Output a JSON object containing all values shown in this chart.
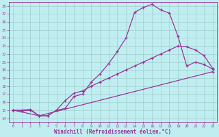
{
  "xlabel": "Windchill (Refroidissement éolien,°C)",
  "xlim": [
    -0.5,
    23.5
  ],
  "ylim": [
    13.5,
    28.5
  ],
  "xticks": [
    0,
    1,
    2,
    3,
    4,
    5,
    6,
    7,
    8,
    9,
    10,
    11,
    12,
    13,
    14,
    15,
    16,
    17,
    18,
    19,
    20,
    21,
    22,
    23
  ],
  "yticks": [
    14,
    15,
    16,
    17,
    18,
    19,
    20,
    21,
    22,
    23,
    24,
    25,
    26,
    27,
    28
  ],
  "background_color": "#c0eef0",
  "line_color": "#993399",
  "grid_color": "#9ecece",
  "line1_x": [
    0,
    1,
    2,
    3,
    4,
    5,
    6,
    7,
    8,
    9,
    10,
    11,
    12,
    13,
    14,
    15,
    16,
    17,
    18,
    19,
    20,
    21,
    22,
    23
  ],
  "line1_y": [
    15.0,
    14.9,
    15.0,
    14.3,
    14.3,
    15.0,
    15.2,
    16.7,
    17.0,
    18.5,
    19.5,
    20.8,
    22.3,
    24.0,
    27.2,
    27.8,
    28.2,
    27.5,
    27.1,
    24.2,
    20.5,
    21.0,
    20.7,
    20.1
  ],
  "line2_x": [
    0,
    1,
    2,
    3,
    4,
    5,
    6,
    7,
    8,
    9,
    10,
    11,
    12,
    13,
    14,
    15,
    16,
    17,
    18,
    19,
    20,
    21,
    22,
    23
  ],
  "line2_y": [
    15.0,
    15.0,
    15.1,
    14.3,
    14.3,
    15.0,
    16.2,
    17.1,
    17.4,
    18.0,
    18.5,
    19.0,
    19.5,
    20.0,
    20.5,
    21.0,
    21.5,
    22.0,
    22.5,
    23.0,
    22.9,
    22.5,
    21.8,
    20.2
  ],
  "line3_x": [
    0,
    3,
    23
  ],
  "line3_y": [
    15.0,
    14.3,
    19.8
  ]
}
